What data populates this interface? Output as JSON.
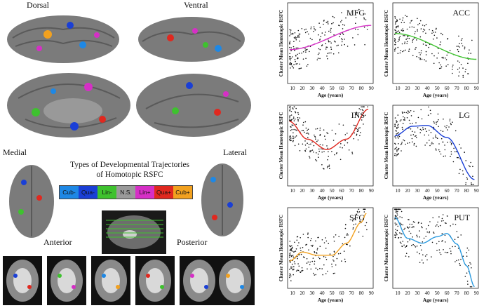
{
  "view_labels": {
    "dorsal": "Dorsal",
    "ventral": "Ventral",
    "medial": "Medial",
    "lateral": "Lateral",
    "anterior": "Anterior",
    "posterior": "Posterior"
  },
  "title": {
    "line1": "Types of Developmental Trajectories",
    "line2": "of Homotopic RSFC"
  },
  "legend": [
    {
      "label": "Cub-",
      "color": "#1e88e5"
    },
    {
      "label": "Qua-",
      "color": "#1a3fd6"
    },
    {
      "label": "Lin-",
      "color": "#3ec22e"
    },
    {
      "label": "N.S.",
      "color": "#9a9a9a"
    },
    {
      "label": "Lin+",
      "color": "#d62fc6"
    },
    {
      "label": "Qua+",
      "color": "#e0281f"
    },
    {
      "label": "Cub+",
      "color": "#f2a11f"
    }
  ],
  "axes_common": {
    "ylabel": "Cluster Mean Homotopic RSFC",
    "xlabel": "Age (years)",
    "xticks": [
      "10",
      "20",
      "30",
      "40",
      "50",
      "60",
      "70",
      "80",
      "90"
    ]
  },
  "chart_data": [
    {
      "type": "scatter",
      "title": "MFG",
      "fit": "linear",
      "fit_color": "#d62fc6",
      "xlim": [
        5,
        92
      ],
      "ylim": [
        0,
        1
      ],
      "fit_points": [
        [
          7,
          0.42
        ],
        [
          90,
          0.72
        ]
      ]
    },
    {
      "type": "scatter",
      "title": "ACC",
      "fit": "linear",
      "fit_color": "#3ec22e",
      "xlim": [
        5,
        92
      ],
      "ylim": [
        0,
        1
      ],
      "fit_points": [
        [
          7,
          0.62
        ],
        [
          90,
          0.3
        ]
      ]
    },
    {
      "type": "scatter",
      "title": "INS",
      "fit": "quadratic",
      "fit_color": "#e0281f",
      "xlim": [
        5,
        92
      ],
      "ylim": [
        0,
        1
      ],
      "fit_points": [
        [
          7,
          0.8
        ],
        [
          25,
          0.58
        ],
        [
          45,
          0.45
        ],
        [
          65,
          0.58
        ],
        [
          87,
          0.95
        ]
      ]
    },
    {
      "type": "scatter",
      "title": "LG",
      "fit": "quadratic",
      "fit_color": "#1a3fd6",
      "xlim": [
        5,
        92
      ],
      "ylim": [
        0,
        1
      ],
      "fit_points": [
        [
          7,
          0.62
        ],
        [
          25,
          0.74
        ],
        [
          40,
          0.75
        ],
        [
          60,
          0.6
        ],
        [
          88,
          0.08
        ]
      ]
    },
    {
      "type": "scatter",
      "title": "SFG",
      "fit": "cubic",
      "fit_color": "#f2a11f",
      "xlim": [
        5,
        92
      ],
      "ylim": [
        0,
        1
      ],
      "fit_points": [
        [
          7,
          0.34
        ],
        [
          20,
          0.45
        ],
        [
          35,
          0.41
        ],
        [
          50,
          0.41
        ],
        [
          65,
          0.56
        ],
        [
          80,
          0.82
        ],
        [
          85,
          0.93
        ]
      ]
    },
    {
      "type": "scatter",
      "title": "PUT",
      "fit": "cubic",
      "fit_color": "#2b9be0",
      "xlim": [
        5,
        92
      ],
      "ylim": [
        0,
        1
      ],
      "fit_points": [
        [
          7,
          0.88
        ],
        [
          20,
          0.62
        ],
        [
          35,
          0.56
        ],
        [
          50,
          0.64
        ],
        [
          60,
          0.68
        ],
        [
          70,
          0.55
        ],
        [
          80,
          0.28
        ],
        [
          88,
          0.02
        ]
      ]
    }
  ]
}
